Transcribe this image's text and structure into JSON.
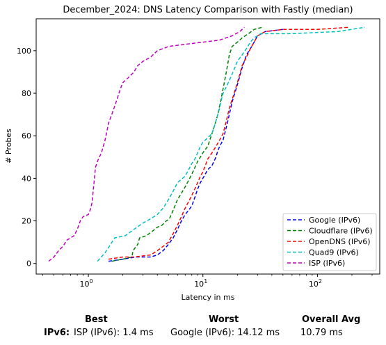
{
  "chart_data": {
    "type": "line",
    "title": "December_2024: DNS Latency Comparison with Fastly (median)",
    "xlabel": "Latency in ms",
    "ylabel": "# Probes",
    "xscale": "log",
    "xlim": [
      0.35,
      350
    ],
    "ylim": [
      -5,
      115
    ],
    "x_ticks": [
      {
        "value": 1,
        "label": "10^0"
      },
      {
        "value": 10,
        "label": "10^1"
      },
      {
        "value": 100,
        "label": "10^2"
      }
    ],
    "y_ticks": [
      0,
      20,
      40,
      60,
      80,
      100
    ],
    "grid": false,
    "legend_position": "lower-right",
    "series": [
      {
        "name": "Google (IPv6)",
        "color": "#0000ff",
        "points": [
          [
            1.5,
            1
          ],
          [
            2.0,
            2
          ],
          [
            2.6,
            3
          ],
          [
            3.5,
            3
          ],
          [
            4.0,
            4
          ],
          [
            4.5,
            6
          ],
          [
            5.0,
            9
          ],
          [
            5.5,
            12
          ],
          [
            6.0,
            16
          ],
          [
            6.5,
            20
          ],
          [
            7.0,
            23
          ],
          [
            7.5,
            25
          ],
          [
            8.0,
            27
          ],
          [
            8.5,
            31
          ],
          [
            9.0,
            35
          ],
          [
            9.5,
            38
          ],
          [
            10,
            40
          ],
          [
            10.5,
            42
          ],
          [
            11,
            44
          ],
          [
            12,
            46
          ],
          [
            12.5,
            48
          ],
          [
            13,
            50
          ],
          [
            13.5,
            53
          ],
          [
            14,
            55
          ],
          [
            15,
            58
          ],
          [
            15.5,
            61
          ],
          [
            16,
            64
          ],
          [
            16.5,
            67
          ],
          [
            17,
            70
          ],
          [
            17.5,
            73
          ],
          [
            18,
            76
          ],
          [
            19,
            80
          ],
          [
            20,
            84
          ],
          [
            21,
            88
          ],
          [
            22,
            92
          ],
          [
            23,
            95
          ],
          [
            24,
            98
          ],
          [
            26,
            101
          ],
          [
            28,
            104
          ],
          [
            30,
            107
          ],
          [
            35,
            109
          ],
          [
            50,
            110
          ]
        ]
      },
      {
        "name": "Cloudflare (IPv6)",
        "color": "#008000",
        "points": [
          [
            1.6,
            1
          ],
          [
            2.0,
            2
          ],
          [
            2.4,
            3
          ],
          [
            2.45,
            6
          ],
          [
            2.7,
            9
          ],
          [
            2.8,
            12
          ],
          [
            3.2,
            13
          ],
          [
            3.6,
            15
          ],
          [
            4.0,
            17
          ],
          [
            4.4,
            18
          ],
          [
            4.8,
            20
          ],
          [
            5.1,
            21
          ],
          [
            5.4,
            24
          ],
          [
            5.7,
            27
          ],
          [
            6.0,
            30
          ],
          [
            6.5,
            33
          ],
          [
            7.0,
            36
          ],
          [
            7.5,
            39
          ],
          [
            8.0,
            42
          ],
          [
            8.5,
            45
          ],
          [
            9.0,
            48
          ],
          [
            9.5,
            50
          ],
          [
            10,
            52
          ],
          [
            11,
            55
          ],
          [
            11.5,
            58
          ],
          [
            12,
            61
          ],
          [
            12.5,
            64
          ],
          [
            13,
            67
          ],
          [
            13.5,
            70
          ],
          [
            14,
            74
          ],
          [
            14.5,
            78
          ],
          [
            15,
            82
          ],
          [
            15.5,
            86
          ],
          [
            16,
            90
          ],
          [
            16.5,
            94
          ],
          [
            17,
            98
          ],
          [
            18,
            102
          ],
          [
            20,
            104
          ],
          [
            22,
            106
          ],
          [
            25,
            108
          ],
          [
            28,
            110
          ],
          [
            33,
            111
          ]
        ]
      },
      {
        "name": "OpenDNS (IPv6)",
        "color": "#ff0000",
        "points": [
          [
            1.5,
            2
          ],
          [
            2.0,
            3
          ],
          [
            2.5,
            3
          ],
          [
            3.5,
            4
          ],
          [
            4.0,
            6
          ],
          [
            4.5,
            8
          ],
          [
            5.0,
            10
          ],
          [
            5.5,
            14
          ],
          [
            6.0,
            18
          ],
          [
            6.5,
            22
          ],
          [
            7.0,
            26
          ],
          [
            7.5,
            29
          ],
          [
            8.0,
            32
          ],
          [
            8.5,
            35
          ],
          [
            9.0,
            38
          ],
          [
            9.5,
            41
          ],
          [
            10,
            43
          ],
          [
            10.5,
            46
          ],
          [
            11,
            49
          ],
          [
            12,
            52
          ],
          [
            13,
            55
          ],
          [
            14,
            58
          ],
          [
            15,
            61
          ],
          [
            15.5,
            64
          ],
          [
            16,
            67
          ],
          [
            16.5,
            70
          ],
          [
            17,
            73
          ],
          [
            18,
            77
          ],
          [
            19,
            81
          ],
          [
            20,
            85
          ],
          [
            21,
            89
          ],
          [
            22,
            93
          ],
          [
            24,
            97
          ],
          [
            26,
            101
          ],
          [
            28,
            104
          ],
          [
            30,
            107
          ],
          [
            35,
            109
          ],
          [
            50,
            110
          ],
          [
            100,
            110
          ],
          [
            190,
            111
          ]
        ]
      },
      {
        "name": "Quad9 (IPv6)",
        "color": "#00bfbf",
        "points": [
          [
            1.2,
            1
          ],
          [
            1.4,
            5
          ],
          [
            1.7,
            12
          ],
          [
            2.1,
            13
          ],
          [
            2.5,
            16
          ],
          [
            3.0,
            19
          ],
          [
            3.5,
            21
          ],
          [
            4.0,
            23
          ],
          [
            4.5,
            26
          ],
          [
            5.0,
            30
          ],
          [
            5.5,
            34
          ],
          [
            6.0,
            38
          ],
          [
            7.0,
            41
          ],
          [
            7.5,
            44
          ],
          [
            8.0,
            47
          ],
          [
            8.5,
            49
          ],
          [
            9.0,
            52
          ],
          [
            9.5,
            55
          ],
          [
            10,
            57
          ],
          [
            11,
            59
          ],
          [
            12,
            61
          ],
          [
            12.5,
            64
          ],
          [
            13,
            67
          ],
          [
            13.5,
            70
          ],
          [
            14,
            73
          ],
          [
            14.5,
            77
          ],
          [
            15,
            80
          ],
          [
            16,
            83
          ],
          [
            17,
            86
          ],
          [
            18,
            89
          ],
          [
            19,
            92
          ],
          [
            20,
            95
          ],
          [
            22,
            98
          ],
          [
            24,
            101
          ],
          [
            26,
            104
          ],
          [
            28,
            106
          ],
          [
            32,
            108
          ],
          [
            60,
            108
          ],
          [
            150,
            109
          ],
          [
            260,
            111
          ]
        ]
      },
      {
        "name": "ISP (IPv6)",
        "color": "#bf00bf",
        "points": [
          [
            0.45,
            1
          ],
          [
            0.5,
            3
          ],
          [
            0.55,
            6
          ],
          [
            0.6,
            8
          ],
          [
            0.65,
            11
          ],
          [
            0.75,
            13
          ],
          [
            0.8,
            16
          ],
          [
            0.85,
            20
          ],
          [
            0.9,
            22
          ],
          [
            1.0,
            23
          ],
          [
            1.05,
            26
          ],
          [
            1.08,
            29
          ],
          [
            1.1,
            34
          ],
          [
            1.12,
            38
          ],
          [
            1.14,
            42
          ],
          [
            1.15,
            45
          ],
          [
            1.2,
            48
          ],
          [
            1.3,
            52
          ],
          [
            1.35,
            55
          ],
          [
            1.4,
            58
          ],
          [
            1.45,
            62
          ],
          [
            1.5,
            66
          ],
          [
            1.6,
            70
          ],
          [
            1.7,
            74
          ],
          [
            1.8,
            78
          ],
          [
            1.9,
            82
          ],
          [
            2.0,
            85
          ],
          [
            2.2,
            87
          ],
          [
            2.5,
            90
          ],
          [
            2.7,
            93
          ],
          [
            3.0,
            95
          ],
          [
            3.5,
            97
          ],
          [
            4.0,
            100
          ],
          [
            4.5,
            101
          ],
          [
            5.0,
            102
          ],
          [
            7.0,
            103
          ],
          [
            10,
            104
          ],
          [
            14,
            105
          ],
          [
            18,
            107
          ],
          [
            21,
            109
          ],
          [
            23,
            111
          ]
        ]
      }
    ]
  },
  "summary": {
    "headers": {
      "best": "Best",
      "worst": "Worst",
      "overall": "Overall Avg"
    },
    "row_label": "IPv6:",
    "best": "ISP (IPv6): 1.4 ms",
    "worst": "Google (IPv6): 14.12 ms",
    "overall": "10.79 ms"
  }
}
